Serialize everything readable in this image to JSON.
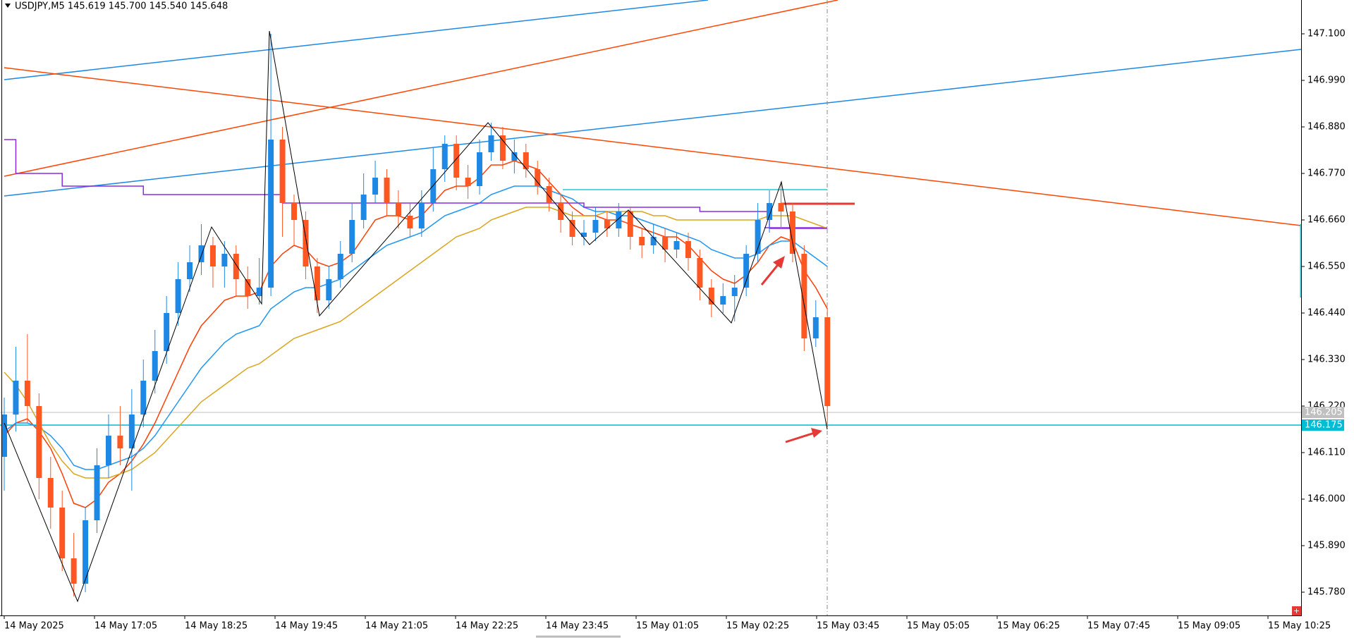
{
  "chart_data": {
    "type": "candlestick",
    "title": "USDJPY,M5  145.619 145.700 145.540 145.648",
    "up_color": "#1e88e5",
    "down_color": "#ff5722",
    "ylim": [
      145.725,
      147.18
    ],
    "yticks": [
      {
        "value": 147.1,
        "label": "147.100"
      },
      {
        "value": 146.99,
        "label": "146.990"
      },
      {
        "value": 146.88,
        "label": "146.880"
      },
      {
        "value": 146.77,
        "label": "146.770"
      },
      {
        "value": 146.66,
        "label": "146.660"
      },
      {
        "value": 146.55,
        "label": "146.550"
      },
      {
        "value": 146.44,
        "label": "146.440"
      },
      {
        "value": 146.33,
        "label": "146.330"
      },
      {
        "value": 146.22,
        "label": "146.220"
      },
      {
        "value": 146.11,
        "label": "146.110"
      },
      {
        "value": 146,
        "label": "146.000"
      },
      {
        "value": 145.89,
        "label": "145.890"
      },
      {
        "value": 145.78,
        "label": "145.780"
      }
    ],
    "xtick_labels": [
      "14 May 2025",
      "14 May 17:05",
      "14 May 18:25",
      "14 May 19:45",
      "14 May 21:05",
      "14 May 22:25",
      "14 May 23:45",
      "15 May 01:05",
      "15 May 02:25",
      "15 May 03:45",
      "15 May 05:05",
      "15 May 06:25",
      "15 May 07:45",
      "15 May 09:05",
      "15 May 10:25"
    ],
    "open": [
      146.1,
      146.2,
      146.28,
      146.22,
      146.05,
      145.98,
      145.86,
      145.8,
      145.95,
      146.08,
      146.15,
      146.12,
      146.2,
      146.28,
      146.35,
      146.44,
      146.52,
      146.56,
      146.6,
      146.55,
      146.58,
      146.52,
      146.48,
      146.5,
      146.85,
      146.7,
      146.66,
      146.55,
      146.47,
      146.52,
      146.58,
      146.66,
      146.72,
      146.76,
      146.7,
      146.67,
      146.64,
      146.7,
      146.78,
      146.84,
      146.76,
      146.74,
      146.82,
      146.86,
      146.8,
      146.82,
      146.78,
      146.74,
      146.7,
      146.66,
      146.62,
      146.63,
      146.66,
      146.64,
      146.68,
      146.62,
      146.6,
      146.62,
      146.59,
      146.61,
      146.57,
      146.5,
      146.46,
      146.48,
      146.5,
      146.58,
      146.66,
      146.7,
      146.68,
      146.58,
      146.38,
      146.43
    ],
    "high": [
      146.24,
      146.36,
      146.39,
      146.25,
      146.1,
      146.02,
      145.92,
      145.98,
      146.12,
      146.2,
      146.22,
      146.26,
      146.33,
      146.4,
      146.48,
      146.56,
      146.6,
      146.65,
      146.62,
      146.61,
      146.6,
      146.55,
      146.57,
      147.1,
      146.88,
      146.72,
      146.68,
      146.57,
      146.55,
      146.61,
      146.7,
      146.77,
      146.8,
      146.78,
      146.73,
      146.7,
      146.73,
      146.83,
      146.86,
      146.86,
      146.79,
      146.85,
      146.89,
      146.88,
      146.85,
      146.84,
      146.8,
      146.76,
      146.72,
      146.68,
      146.66,
      146.69,
      146.68,
      146.7,
      146.69,
      146.64,
      146.65,
      146.64,
      146.63,
      146.63,
      146.59,
      146.52,
      146.51,
      146.53,
      146.6,
      146.7,
      146.73,
      146.75,
      146.7,
      146.6,
      146.47,
      146.45
    ],
    "low": [
      146.02,
      146.16,
      146.18,
      146.0,
      145.93,
      145.83,
      145.77,
      145.78,
      145.92,
      146.05,
      146.08,
      146.02,
      146.17,
      146.25,
      146.32,
      146.41,
      146.49,
      146.53,
      146.5,
      146.5,
      146.48,
      146.45,
      146.46,
      146.48,
      146.62,
      146.6,
      146.52,
      146.44,
      146.45,
      146.5,
      146.56,
      146.64,
      146.7,
      146.67,
      146.64,
      146.62,
      146.62,
      146.68,
      146.75,
      146.73,
      146.71,
      146.72,
      146.8,
      146.78,
      146.77,
      146.76,
      146.72,
      146.68,
      146.63,
      146.6,
      146.6,
      146.61,
      146.62,
      146.62,
      146.59,
      146.57,
      146.58,
      146.56,
      146.57,
      146.54,
      146.47,
      146.43,
      146.44,
      146.42,
      146.48,
      146.56,
      146.63,
      146.64,
      146.56,
      146.35,
      146.36,
      146.17
    ],
    "close": [
      146.2,
      146.28,
      146.22,
      146.05,
      145.98,
      145.86,
      145.8,
      145.95,
      146.08,
      146.15,
      146.12,
      146.2,
      146.28,
      146.35,
      146.44,
      146.52,
      146.56,
      146.6,
      146.55,
      146.58,
      146.52,
      146.48,
      146.5,
      146.85,
      146.7,
      146.66,
      146.55,
      146.47,
      146.52,
      146.58,
      146.66,
      146.72,
      146.76,
      146.7,
      146.67,
      146.64,
      146.7,
      146.78,
      146.84,
      146.76,
      146.74,
      146.82,
      146.86,
      146.8,
      146.82,
      146.78,
      146.74,
      146.7,
      146.66,
      146.62,
      146.63,
      146.66,
      146.64,
      146.68,
      146.62,
      146.6,
      146.62,
      146.59,
      146.61,
      146.57,
      146.5,
      146.46,
      146.48,
      146.5,
      146.58,
      146.66,
      146.7,
      146.68,
      146.58,
      146.38,
      146.43,
      146.22
    ],
    "series": [
      {
        "color": "#ff3d00",
        "values": [
          146.15,
          146.18,
          146.19,
          146.16,
          146.12,
          146.06,
          145.99,
          145.98,
          146.0,
          146.04,
          146.06,
          146.09,
          146.13,
          146.18,
          146.24,
          146.3,
          146.36,
          146.41,
          146.44,
          146.47,
          146.48,
          146.48,
          146.49,
          146.55,
          146.58,
          146.6,
          146.59,
          146.56,
          146.55,
          146.56,
          146.58,
          146.62,
          146.66,
          146.67,
          146.67,
          146.66,
          146.67,
          146.7,
          146.73,
          146.74,
          146.74,
          146.76,
          146.79,
          146.79,
          146.8,
          146.79,
          146.78,
          146.75,
          146.72,
          146.69,
          146.67,
          146.67,
          146.66,
          146.66,
          146.65,
          146.64,
          146.63,
          146.62,
          146.62,
          146.6,
          146.57,
          146.54,
          146.52,
          146.51,
          146.53,
          146.56,
          146.6,
          146.62,
          146.61,
          146.54,
          146.5,
          146.45
        ]
      },
      {
        "color": "#2196f3",
        "values": [
          146.16,
          146.18,
          146.18,
          146.17,
          146.15,
          146.12,
          146.08,
          146.07,
          146.07,
          146.08,
          146.09,
          146.1,
          146.12,
          146.15,
          146.19,
          146.23,
          146.27,
          146.31,
          146.34,
          146.37,
          146.39,
          146.4,
          146.41,
          146.45,
          146.47,
          146.49,
          146.5,
          146.5,
          146.51,
          146.52,
          146.54,
          146.56,
          146.58,
          146.6,
          146.61,
          146.62,
          146.63,
          146.65,
          146.67,
          146.68,
          146.69,
          146.7,
          146.72,
          146.73,
          146.74,
          146.74,
          146.74,
          146.73,
          146.72,
          146.71,
          146.69,
          146.68,
          146.68,
          146.67,
          146.67,
          146.66,
          146.65,
          146.64,
          146.63,
          146.62,
          146.61,
          146.59,
          146.58,
          146.57,
          146.57,
          146.58,
          146.6,
          146.61,
          146.61,
          146.59,
          146.57,
          146.55
        ]
      },
      {
        "color": "#daa520",
        "values": [
          146.3,
          146.27,
          146.23,
          146.18,
          146.13,
          146.09,
          146.06,
          146.05,
          146.05,
          146.05,
          146.06,
          146.07,
          146.09,
          146.11,
          146.14,
          146.17,
          146.2,
          146.23,
          146.25,
          146.27,
          146.29,
          146.31,
          146.32,
          146.34,
          146.36,
          146.38,
          146.39,
          146.4,
          146.41,
          146.42,
          146.44,
          146.46,
          146.48,
          146.5,
          146.52,
          146.54,
          146.56,
          146.58,
          146.6,
          146.62,
          146.63,
          146.64,
          146.66,
          146.67,
          146.68,
          146.69,
          146.69,
          146.69,
          146.68,
          146.67,
          146.67,
          146.67,
          146.68,
          146.68,
          146.68,
          146.68,
          146.67,
          146.67,
          146.66,
          146.66,
          146.66,
          146.66,
          146.66,
          146.66,
          146.66,
          146.66,
          146.67,
          146.67,
          146.67,
          146.66,
          146.65,
          146.64
        ]
      },
      {
        "color": "#8a2be2",
        "step": true,
        "values": [
          146.85,
          146.77,
          146.77,
          146.77,
          146.77,
          146.74,
          146.74,
          146.74,
          146.74,
          146.74,
          146.74,
          146.74,
          146.72,
          146.72,
          146.72,
          146.72,
          146.72,
          146.72,
          146.72,
          146.72,
          146.72,
          146.72,
          146.72,
          146.72,
          146.7,
          146.7,
          146.7,
          146.7,
          146.7,
          146.7,
          146.7,
          146.7,
          146.7,
          146.7,
          146.7,
          146.7,
          146.7,
          146.7,
          146.7,
          146.7,
          146.7,
          146.7,
          146.7,
          146.7,
          146.7,
          146.7,
          146.7,
          146.7,
          146.7,
          146.7,
          146.69,
          146.69,
          146.69,
          146.69,
          146.69,
          146.69,
          146.69,
          146.69,
          146.69,
          146.69,
          146.68,
          146.68,
          146.68,
          146.68,
          146.68,
          146.68,
          146.64,
          146.64,
          146.64,
          146.64,
          146.64,
          146.64
        ]
      }
    ],
    "price_lines": [
      {
        "value": 146.205,
        "color": "#c0c0c0"
      },
      {
        "value": 146.175,
        "color": "#00bcd4"
      }
    ]
  }
}
